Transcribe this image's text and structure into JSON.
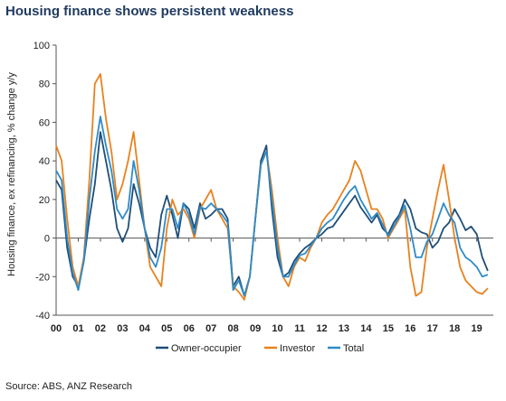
{
  "title": "Housing finance shows persistent weakness",
  "source": "Source: ABS, ANZ Research",
  "chart_data": {
    "type": "line",
    "title": "Housing finance shows persistent weakness",
    "ylabel": "Housing finance, ex refinancing, % change y/y",
    "xlabel": "",
    "xlim": [
      2000.0,
      2019.75
    ],
    "ylim": [
      -40,
      100
    ],
    "y_ticks": [
      -40,
      -20,
      0,
      20,
      40,
      60,
      80,
      100
    ],
    "y_tick_labels": [
      "-40",
      "-20",
      "0",
      "20",
      "40",
      "60",
      "80",
      "100"
    ],
    "x_ticks": [
      2000,
      2001,
      2002,
      2003,
      2004,
      2005,
      2006,
      2007,
      2008,
      2009,
      2010,
      2011,
      2012,
      2013,
      2014,
      2015,
      2016,
      2017,
      2018,
      2019
    ],
    "x_tick_labels": [
      "00",
      "01",
      "02",
      "03",
      "04",
      "05",
      "06",
      "07",
      "08",
      "09",
      "10",
      "11",
      "12",
      "13",
      "14",
      "15",
      "16",
      "17",
      "18",
      "19"
    ],
    "grid": false,
    "legend_position": "bottom",
    "series": [
      {
        "name": "Owner-occupier",
        "color": "#1f4e79",
        "x": [
          2000.0,
          2000.25,
          2000.5,
          2000.75,
          2001.0,
          2001.25,
          2001.5,
          2001.75,
          2002.0,
          2002.25,
          2002.5,
          2002.75,
          2003.0,
          2003.25,
          2003.5,
          2003.75,
          2004.0,
          2004.25,
          2004.5,
          2004.75,
          2005.0,
          2005.25,
          2005.5,
          2005.75,
          2006.0,
          2006.25,
          2006.5,
          2006.75,
          2007.0,
          2007.25,
          2007.5,
          2007.75,
          2008.0,
          2008.25,
          2008.5,
          2008.75,
          2009.0,
          2009.25,
          2009.5,
          2009.75,
          2010.0,
          2010.25,
          2010.5,
          2010.75,
          2011.0,
          2011.25,
          2011.5,
          2011.75,
          2012.0,
          2012.25,
          2012.5,
          2012.75,
          2013.0,
          2013.25,
          2013.5,
          2013.75,
          2014.0,
          2014.25,
          2014.5,
          2014.75,
          2015.0,
          2015.25,
          2015.5,
          2015.75,
          2016.0,
          2016.25,
          2016.5,
          2016.75,
          2017.0,
          2017.25,
          2017.5,
          2017.75,
          2018.0,
          2018.25,
          2018.5,
          2018.75,
          2019.0,
          2019.25,
          2019.5
        ],
        "values": [
          30,
          25,
          -5,
          -20,
          -25,
          -12,
          10,
          28,
          55,
          40,
          25,
          5,
          -2,
          5,
          28,
          18,
          5,
          -5,
          -10,
          12,
          22,
          12,
          0,
          18,
          15,
          5,
          18,
          10,
          12,
          15,
          15,
          10,
          -25,
          -20,
          -30,
          -20,
          10,
          40,
          48,
          15,
          -10,
          -20,
          -18,
          -12,
          -8,
          -5,
          -3,
          0,
          2,
          5,
          6,
          10,
          14,
          18,
          22,
          16,
          12,
          8,
          12,
          5,
          2,
          8,
          12,
          20,
          15,
          5,
          3,
          2,
          -5,
          -2,
          5,
          8,
          15,
          10,
          4,
          6,
          2,
          -10,
          -17
        ]
      },
      {
        "name": "Investor",
        "color": "#e8821e",
        "x": [
          2000.0,
          2000.25,
          2000.5,
          2000.75,
          2001.0,
          2001.25,
          2001.5,
          2001.75,
          2002.0,
          2002.25,
          2002.5,
          2002.75,
          2003.0,
          2003.25,
          2003.5,
          2003.75,
          2004.0,
          2004.25,
          2004.5,
          2004.75,
          2005.0,
          2005.25,
          2005.5,
          2005.75,
          2006.0,
          2006.25,
          2006.5,
          2006.75,
          2007.0,
          2007.25,
          2007.5,
          2007.75,
          2008.0,
          2008.25,
          2008.5,
          2008.75,
          2009.0,
          2009.25,
          2009.5,
          2009.75,
          2010.0,
          2010.25,
          2010.5,
          2010.75,
          2011.0,
          2011.25,
          2011.5,
          2011.75,
          2012.0,
          2012.25,
          2012.5,
          2012.75,
          2013.0,
          2013.25,
          2013.5,
          2013.75,
          2014.0,
          2014.25,
          2014.5,
          2014.75,
          2015.0,
          2015.25,
          2015.5,
          2015.75,
          2016.0,
          2016.25,
          2016.5,
          2016.75,
          2017.0,
          2017.25,
          2017.5,
          2017.75,
          2018.0,
          2018.25,
          2018.5,
          2018.75,
          2019.0,
          2019.25,
          2019.5
        ],
        "values": [
          48,
          40,
          10,
          -15,
          -25,
          -10,
          30,
          80,
          85,
          62,
          45,
          20,
          28,
          40,
          55,
          30,
          5,
          -15,
          -20,
          -25,
          5,
          20,
          12,
          15,
          10,
          0,
          15,
          20,
          25,
          15,
          10,
          5,
          -25,
          -28,
          -32,
          -20,
          10,
          38,
          45,
          25,
          0,
          -20,
          -25,
          -15,
          -10,
          -12,
          -5,
          0,
          8,
          12,
          15,
          20,
          25,
          30,
          40,
          35,
          25,
          15,
          15,
          10,
          0,
          5,
          10,
          15,
          -15,
          -30,
          -28,
          -5,
          10,
          25,
          38,
          20,
          0,
          -15,
          -22,
          -25,
          -28,
          -29,
          -26
        ]
      },
      {
        "name": "Total",
        "color": "#2e8bc8",
        "x": [
          2000.0,
          2000.25,
          2000.5,
          2000.75,
          2001.0,
          2001.25,
          2001.5,
          2001.75,
          2002.0,
          2002.25,
          2002.5,
          2002.75,
          2003.0,
          2003.25,
          2003.5,
          2003.75,
          2004.0,
          2004.25,
          2004.5,
          2004.75,
          2005.0,
          2005.25,
          2005.5,
          2005.75,
          2006.0,
          2006.25,
          2006.5,
          2006.75,
          2007.0,
          2007.25,
          2007.5,
          2007.75,
          2008.0,
          2008.25,
          2008.5,
          2008.75,
          2009.0,
          2009.25,
          2009.5,
          2009.75,
          2010.0,
          2010.25,
          2010.5,
          2010.75,
          2011.0,
          2011.25,
          2011.5,
          2011.75,
          2012.0,
          2012.25,
          2012.5,
          2012.75,
          2013.0,
          2013.25,
          2013.5,
          2013.75,
          2014.0,
          2014.25,
          2014.5,
          2014.75,
          2015.0,
          2015.25,
          2015.5,
          2015.75,
          2016.0,
          2016.25,
          2016.5,
          2016.75,
          2017.0,
          2017.25,
          2017.5,
          2017.75,
          2018.0,
          2018.25,
          2018.5,
          2018.75,
          2019.0,
          2019.25,
          2019.5
        ],
        "values": [
          35,
          30,
          0,
          -18,
          -27,
          -12,
          20,
          45,
          63,
          48,
          35,
          15,
          10,
          15,
          40,
          25,
          5,
          -10,
          -15,
          -5,
          15,
          15,
          5,
          18,
          12,
          2,
          16,
          15,
          18,
          15,
          12,
          8,
          -27,
          -22,
          -30,
          -20,
          10,
          38,
          45,
          20,
          -5,
          -20,
          -20,
          -14,
          -9,
          -8,
          -4,
          0,
          5,
          8,
          10,
          15,
          20,
          24,
          27,
          20,
          15,
          10,
          13,
          7,
          1,
          6,
          11,
          17,
          5,
          -10,
          -10,
          -2,
          2,
          10,
          18,
          12,
          8,
          -5,
          -10,
          -12,
          -15,
          -20,
          -19
        ]
      }
    ]
  }
}
